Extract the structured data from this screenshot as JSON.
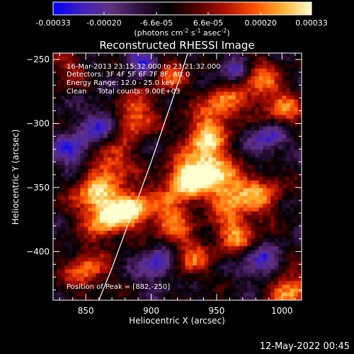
{
  "chart_data": {
    "type": "heatmap",
    "title": "Reconstructed RHESSI Image",
    "xlabel": "Heliocentric X (arcsec)",
    "ylabel": "Heliocentric Y (arcsec)",
    "xlim": [
      825,
      1015
    ],
    "ylim": [
      -438,
      -245
    ],
    "xticks": [
      850,
      900,
      950,
      1000
    ],
    "yticks": [
      -250,
      -300,
      -350,
      -400
    ],
    "colorbar": {
      "min": -0.00033,
      "max": 0.00033,
      "tick_labels": [
        "-0.00033",
        "-0.00020",
        "-6.6e-05",
        "6.6e-05",
        "0.00020",
        "0.00033"
      ],
      "tick_values": [
        -0.00033,
        -0.0002,
        -6.6e-05,
        6.6e-05,
        0.0002,
        0.00033
      ],
      "unit_parts": [
        "(photons cm",
        "-2",
        " s",
        "-1",
        " asec",
        "-2",
        ")"
      ],
      "colormap": [
        "#0000ff",
        "#4020c0",
        "#603080",
        "#301040",
        "#000000",
        "#500000",
        "#b01000",
        "#ff5000",
        "#ffb030",
        "#ffffd0"
      ]
    },
    "annotations": [
      "16-Mar-2013 23:15:32.000 to 23:21:32.000",
      "Detectors: 3F 4F 5F 6F 7F 8F, Att 0",
      "Energy Range: 12.0 - 25.0 keV",
      "Clean     Total counts: 9.00E+03"
    ],
    "peak_label": "Position of Peak = [882,-250]",
    "limb_curve": {
      "x": [
        928,
        920,
        910,
        900,
        890,
        880,
        870,
        860
      ],
      "y": [
        -245,
        -270,
        -300,
        -330,
        -358,
        -385,
        -413,
        -438
      ]
    },
    "hotspots": [
      {
        "x": 885,
        "y": -295,
        "v": 0.85
      },
      {
        "x": 870,
        "y": -330,
        "v": 0.7
      },
      {
        "x": 855,
        "y": -355,
        "v": 0.75
      },
      {
        "x": 885,
        "y": -365,
        "v": 0.95
      },
      {
        "x": 865,
        "y": -375,
        "v": 0.8
      },
      {
        "x": 925,
        "y": -345,
        "v": 1.0
      },
      {
        "x": 945,
        "y": -335,
        "v": 0.95
      },
      {
        "x": 960,
        "y": -355,
        "v": 0.8
      },
      {
        "x": 940,
        "y": -310,
        "v": 0.85
      },
      {
        "x": 955,
        "y": -285,
        "v": 0.75
      },
      {
        "x": 980,
        "y": -265,
        "v": 0.8
      },
      {
        "x": 1000,
        "y": -290,
        "v": 0.7
      },
      {
        "x": 915,
        "y": -375,
        "v": 0.7
      },
      {
        "x": 985,
        "y": -355,
        "v": 0.65
      },
      {
        "x": 965,
        "y": -385,
        "v": 0.75
      },
      {
        "x": 930,
        "y": -405,
        "v": 0.6
      },
      {
        "x": 1005,
        "y": -430,
        "v": 0.85
      },
      {
        "x": 850,
        "y": -415,
        "v": 0.7
      },
      {
        "x": 835,
        "y": -255,
        "v": 0.4
      },
      {
        "x": 912,
        "y": -262,
        "v": 0.6
      }
    ],
    "coldspots": [
      {
        "x": 865,
        "y": -300
      },
      {
        "x": 840,
        "y": -320
      },
      {
        "x": 905,
        "y": -410
      },
      {
        "x": 985,
        "y": -410
      },
      {
        "x": 990,
        "y": -310
      },
      {
        "x": 965,
        "y": -260
      },
      {
        "x": 895,
        "y": -250
      }
    ]
  },
  "footer": {
    "date": "12-May-2022 00:45"
  }
}
